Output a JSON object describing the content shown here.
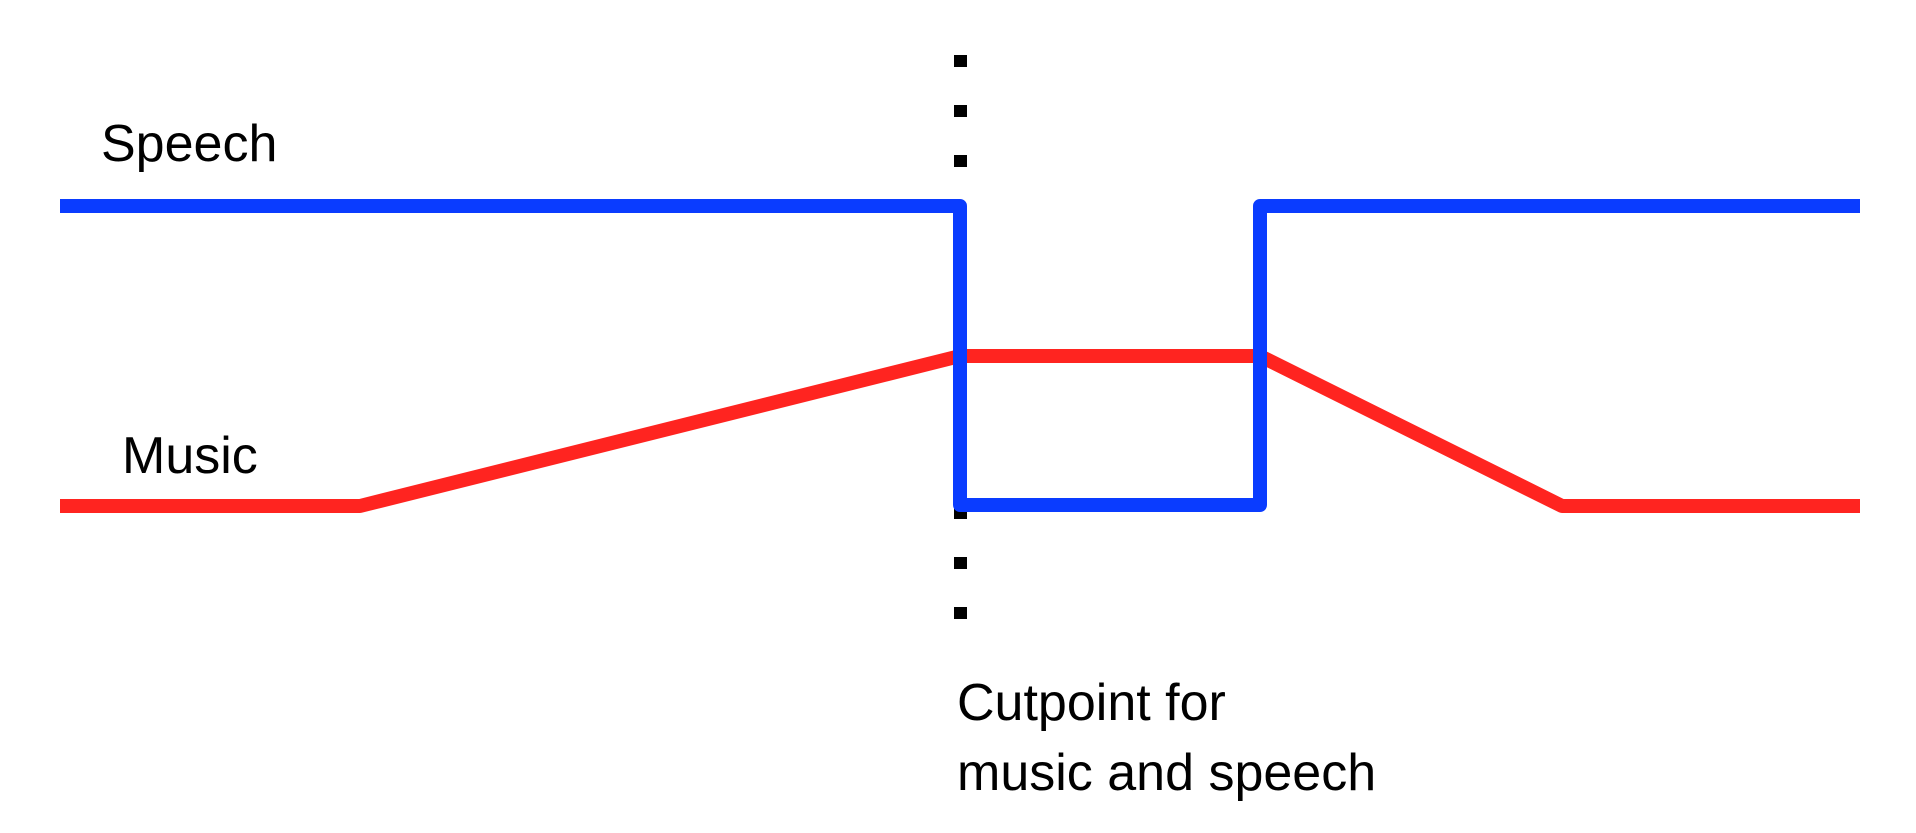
{
  "diagram": {
    "speech_label": "Speech",
    "music_label": "Music",
    "cutpoint_caption": {
      "line1": "Cutpoint for",
      "line2": "music and speech"
    }
  },
  "colors": {
    "speech": "#0a3cff",
    "music": "#ff2420",
    "cutpoint_marker": "#000000",
    "background": "#ffffff"
  }
}
